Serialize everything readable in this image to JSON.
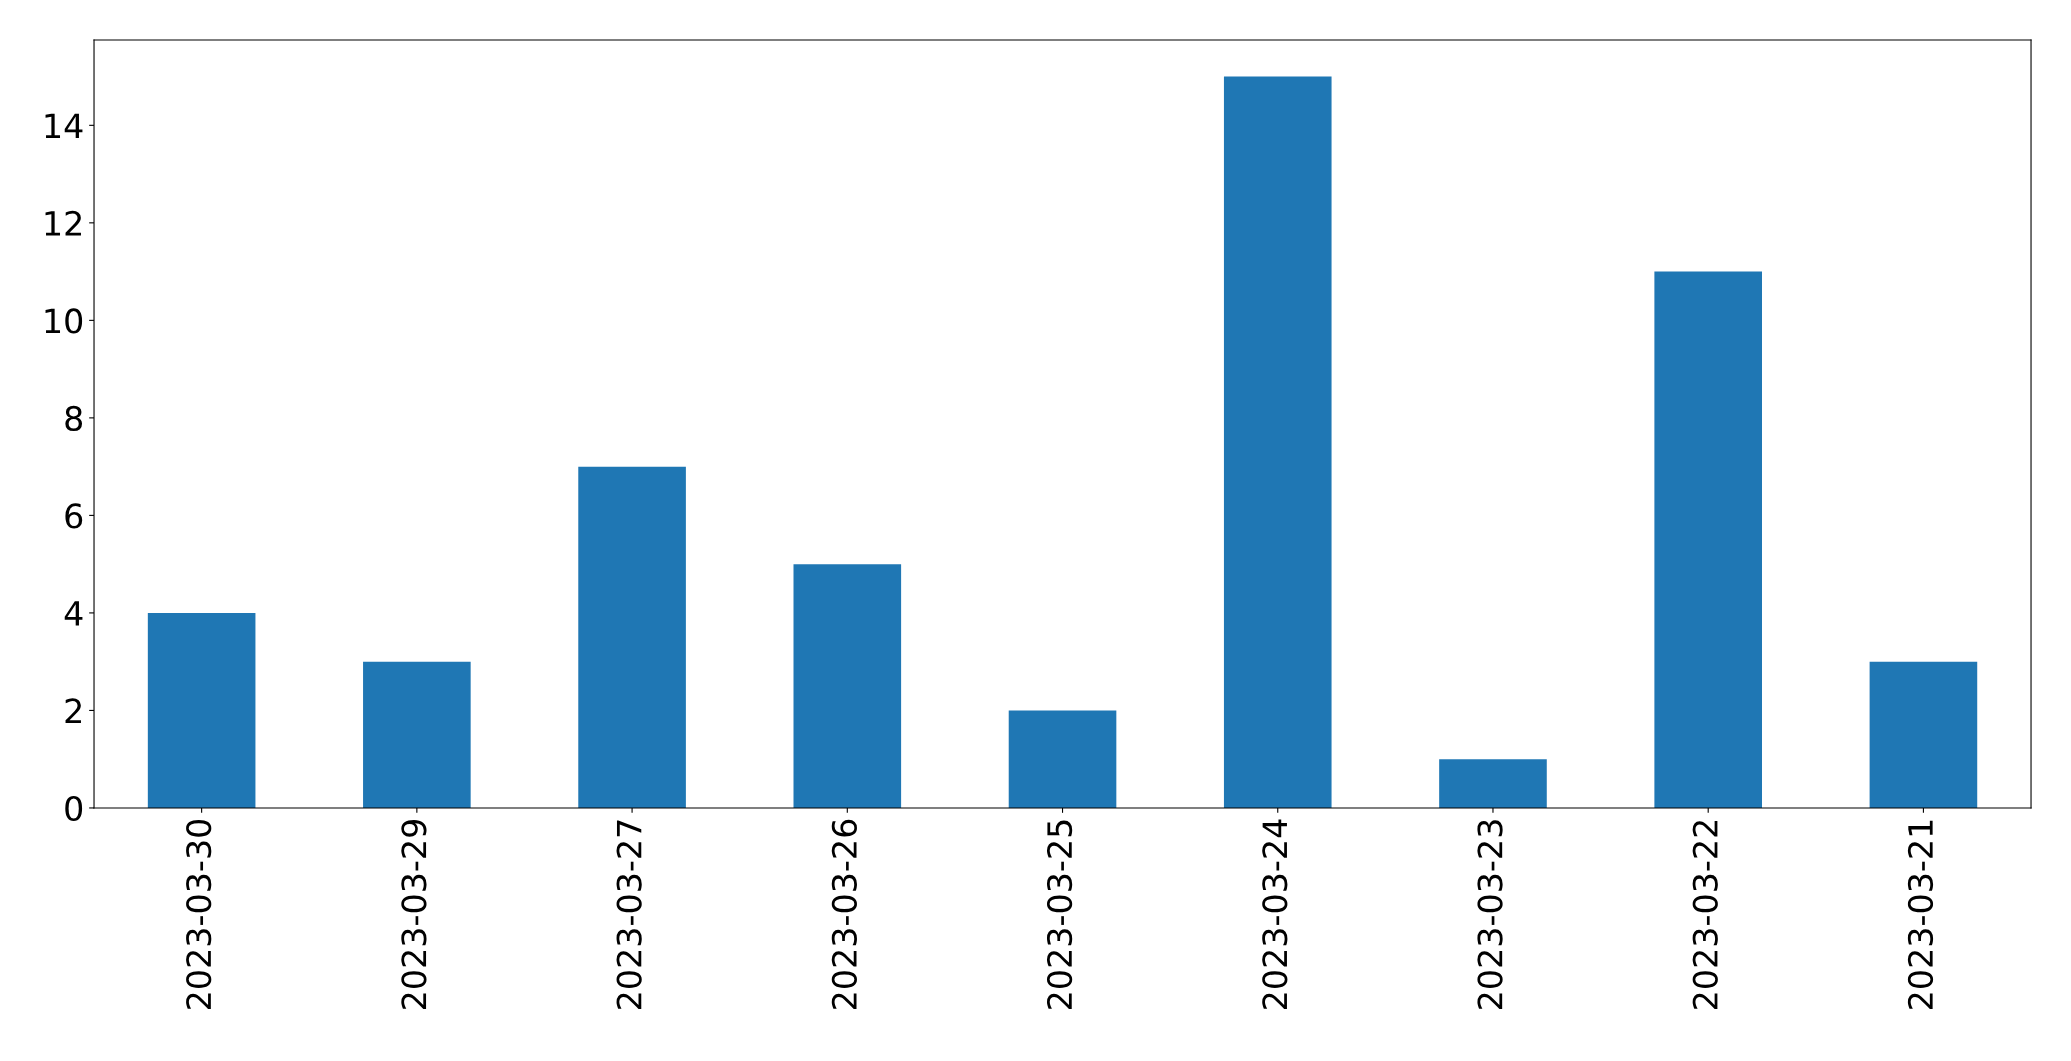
{
  "chart_data": {
    "type": "bar",
    "categories": [
      "2023-03-30",
      "2023-03-29",
      "2023-03-27",
      "2023-03-26",
      "2023-03-25",
      "2023-03-24",
      "2023-03-23",
      "2023-03-22",
      "2023-03-21"
    ],
    "values": [
      4,
      3,
      7,
      5,
      2,
      15,
      1,
      11,
      3
    ],
    "color": "#1f77b4",
    "ylim": [
      0,
      15.75
    ],
    "yticks": [
      0,
      2,
      4,
      6,
      8,
      10,
      12,
      14
    ],
    "grid": false,
    "legend": false
  }
}
